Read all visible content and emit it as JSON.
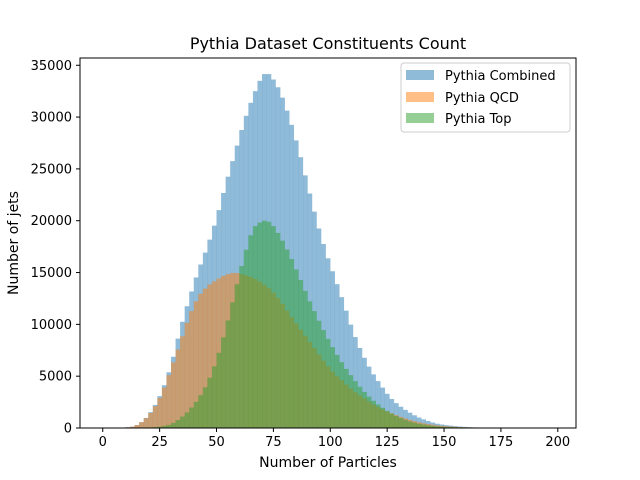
{
  "chart_data": {
    "type": "bar",
    "histogram": true,
    "title": "Pythia Dataset Constituents Count",
    "xlabel": "Number of Particles",
    "ylabel": "Number of jets",
    "xlim": [
      -10,
      208
    ],
    "ylim": [
      0,
      35700
    ],
    "xticks": [
      0,
      25,
      50,
      75,
      100,
      125,
      150,
      175,
      200
    ],
    "yticks": [
      0,
      5000,
      10000,
      15000,
      20000,
      25000,
      30000,
      35000
    ],
    "grid": false,
    "legend_position": "top-right",
    "bin_width": 2,
    "series": [
      {
        "name": "Pythia Combined",
        "color": "#1f77b4",
        "opacity": 0.5,
        "profile": [
          [
            0,
            0
          ],
          [
            8,
            0
          ],
          [
            10,
            50
          ],
          [
            14,
            150
          ],
          [
            18,
            700
          ],
          [
            22,
            1800
          ],
          [
            26,
            3500
          ],
          [
            30,
            6000
          ],
          [
            34,
            9500
          ],
          [
            38,
            12500
          ],
          [
            42,
            15200
          ],
          [
            46,
            17500
          ],
          [
            50,
            20200
          ],
          [
            54,
            23500
          ],
          [
            58,
            26500
          ],
          [
            62,
            29500
          ],
          [
            66,
            32000
          ],
          [
            70,
            34000
          ],
          [
            72,
            34300
          ],
          [
            74,
            34000
          ],
          [
            78,
            32500
          ],
          [
            82,
            30000
          ],
          [
            86,
            27000
          ],
          [
            90,
            23500
          ],
          [
            94,
            20000
          ],
          [
            98,
            17000
          ],
          [
            102,
            14500
          ],
          [
            106,
            12000
          ],
          [
            110,
            9300
          ],
          [
            114,
            7200
          ],
          [
            118,
            5500
          ],
          [
            122,
            4200
          ],
          [
            126,
            3000
          ],
          [
            130,
            2200
          ],
          [
            134,
            1600
          ],
          [
            138,
            1100
          ],
          [
            142,
            750
          ],
          [
            146,
            450
          ],
          [
            150,
            300
          ],
          [
            156,
            150
          ],
          [
            162,
            70
          ],
          [
            170,
            25
          ],
          [
            180,
            5
          ],
          [
            200,
            0
          ]
        ]
      },
      {
        "name": "Pythia QCD",
        "color": "#ff7f0e",
        "opacity": 0.5,
        "profile": [
          [
            0,
            0
          ],
          [
            8,
            0
          ],
          [
            10,
            50
          ],
          [
            14,
            150
          ],
          [
            18,
            700
          ],
          [
            22,
            1700
          ],
          [
            26,
            3300
          ],
          [
            30,
            5700
          ],
          [
            34,
            8200
          ],
          [
            38,
            10800
          ],
          [
            42,
            12700
          ],
          [
            46,
            13700
          ],
          [
            50,
            14300
          ],
          [
            54,
            14800
          ],
          [
            58,
            15000
          ],
          [
            62,
            14800
          ],
          [
            66,
            14500
          ],
          [
            70,
            14000
          ],
          [
            74,
            13300
          ],
          [
            78,
            12300
          ],
          [
            82,
            11000
          ],
          [
            86,
            9800
          ],
          [
            90,
            8600
          ],
          [
            94,
            7400
          ],
          [
            98,
            6200
          ],
          [
            102,
            5200
          ],
          [
            106,
            4400
          ],
          [
            110,
            3600
          ],
          [
            114,
            3000
          ],
          [
            118,
            2400
          ],
          [
            122,
            1900
          ],
          [
            126,
            1500
          ],
          [
            130,
            1150
          ],
          [
            134,
            850
          ],
          [
            138,
            600
          ],
          [
            142,
            420
          ],
          [
            146,
            280
          ],
          [
            150,
            180
          ],
          [
            156,
            100
          ],
          [
            162,
            50
          ],
          [
            170,
            20
          ],
          [
            180,
            5
          ],
          [
            200,
            0
          ]
        ]
      },
      {
        "name": "Pythia Top",
        "color": "#2ca02c",
        "opacity": 0.5,
        "profile": [
          [
            0,
            0
          ],
          [
            20,
            0
          ],
          [
            22,
            50
          ],
          [
            26,
            150
          ],
          [
            30,
            350
          ],
          [
            34,
            900
          ],
          [
            38,
            1700
          ],
          [
            42,
            2800
          ],
          [
            46,
            4300
          ],
          [
            50,
            6500
          ],
          [
            54,
            9500
          ],
          [
            58,
            13000
          ],
          [
            62,
            16500
          ],
          [
            66,
            19300
          ],
          [
            70,
            20000
          ],
          [
            72,
            20000
          ],
          [
            74,
            19800
          ],
          [
            78,
            18500
          ],
          [
            82,
            16800
          ],
          [
            86,
            14800
          ],
          [
            90,
            12700
          ],
          [
            94,
            10800
          ],
          [
            98,
            9000
          ],
          [
            102,
            7400
          ],
          [
            106,
            6000
          ],
          [
            110,
            4800
          ],
          [
            114,
            3700
          ],
          [
            118,
            2800
          ],
          [
            122,
            2100
          ],
          [
            126,
            1500
          ],
          [
            130,
            1050
          ],
          [
            134,
            700
          ],
          [
            138,
            450
          ],
          [
            142,
            300
          ],
          [
            146,
            180
          ],
          [
            150,
            110
          ],
          [
            156,
            60
          ],
          [
            162,
            30
          ],
          [
            170,
            10
          ],
          [
            180,
            0
          ],
          [
            200,
            0
          ]
        ]
      }
    ]
  }
}
